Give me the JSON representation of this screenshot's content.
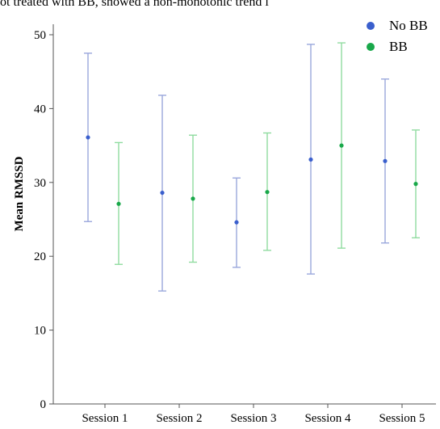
{
  "caption_fragment": "ot treated with BB, showed a non-monotonic trend i",
  "colors": {
    "no_bb": "#3a5fcd",
    "no_bb_bar": "#9aa7dc",
    "bb": "#19a84a",
    "bb_bar": "#90dca0",
    "axis": "#555555"
  },
  "chart_data": {
    "type": "scatter",
    "subtype": "error-bar",
    "ylabel": "Mean RMSSD",
    "xlabel": "",
    "ylim": [
      0,
      50
    ],
    "yticks": [
      0,
      10,
      20,
      30,
      40,
      50
    ],
    "categories": [
      "Session 1",
      "Session 2",
      "Session 3",
      "Session 4",
      "Session 5"
    ],
    "legend_position": "top-right",
    "series": [
      {
        "name": "No BB",
        "color": "#3a5fcd",
        "values": [
          36.1,
          28.6,
          24.6,
          33.1,
          32.9
        ],
        "lower": [
          24.7,
          15.3,
          18.5,
          17.6,
          21.8
        ],
        "upper": [
          47.5,
          41.8,
          30.6,
          48.7,
          44.0
        ]
      },
      {
        "name": "BB",
        "color": "#19a84a",
        "values": [
          27.1,
          27.8,
          28.7,
          35.0,
          29.8
        ],
        "lower": [
          18.9,
          19.2,
          20.8,
          21.1,
          22.5
        ],
        "upper": [
          35.4,
          36.4,
          36.7,
          48.9,
          37.1
        ]
      }
    ]
  }
}
